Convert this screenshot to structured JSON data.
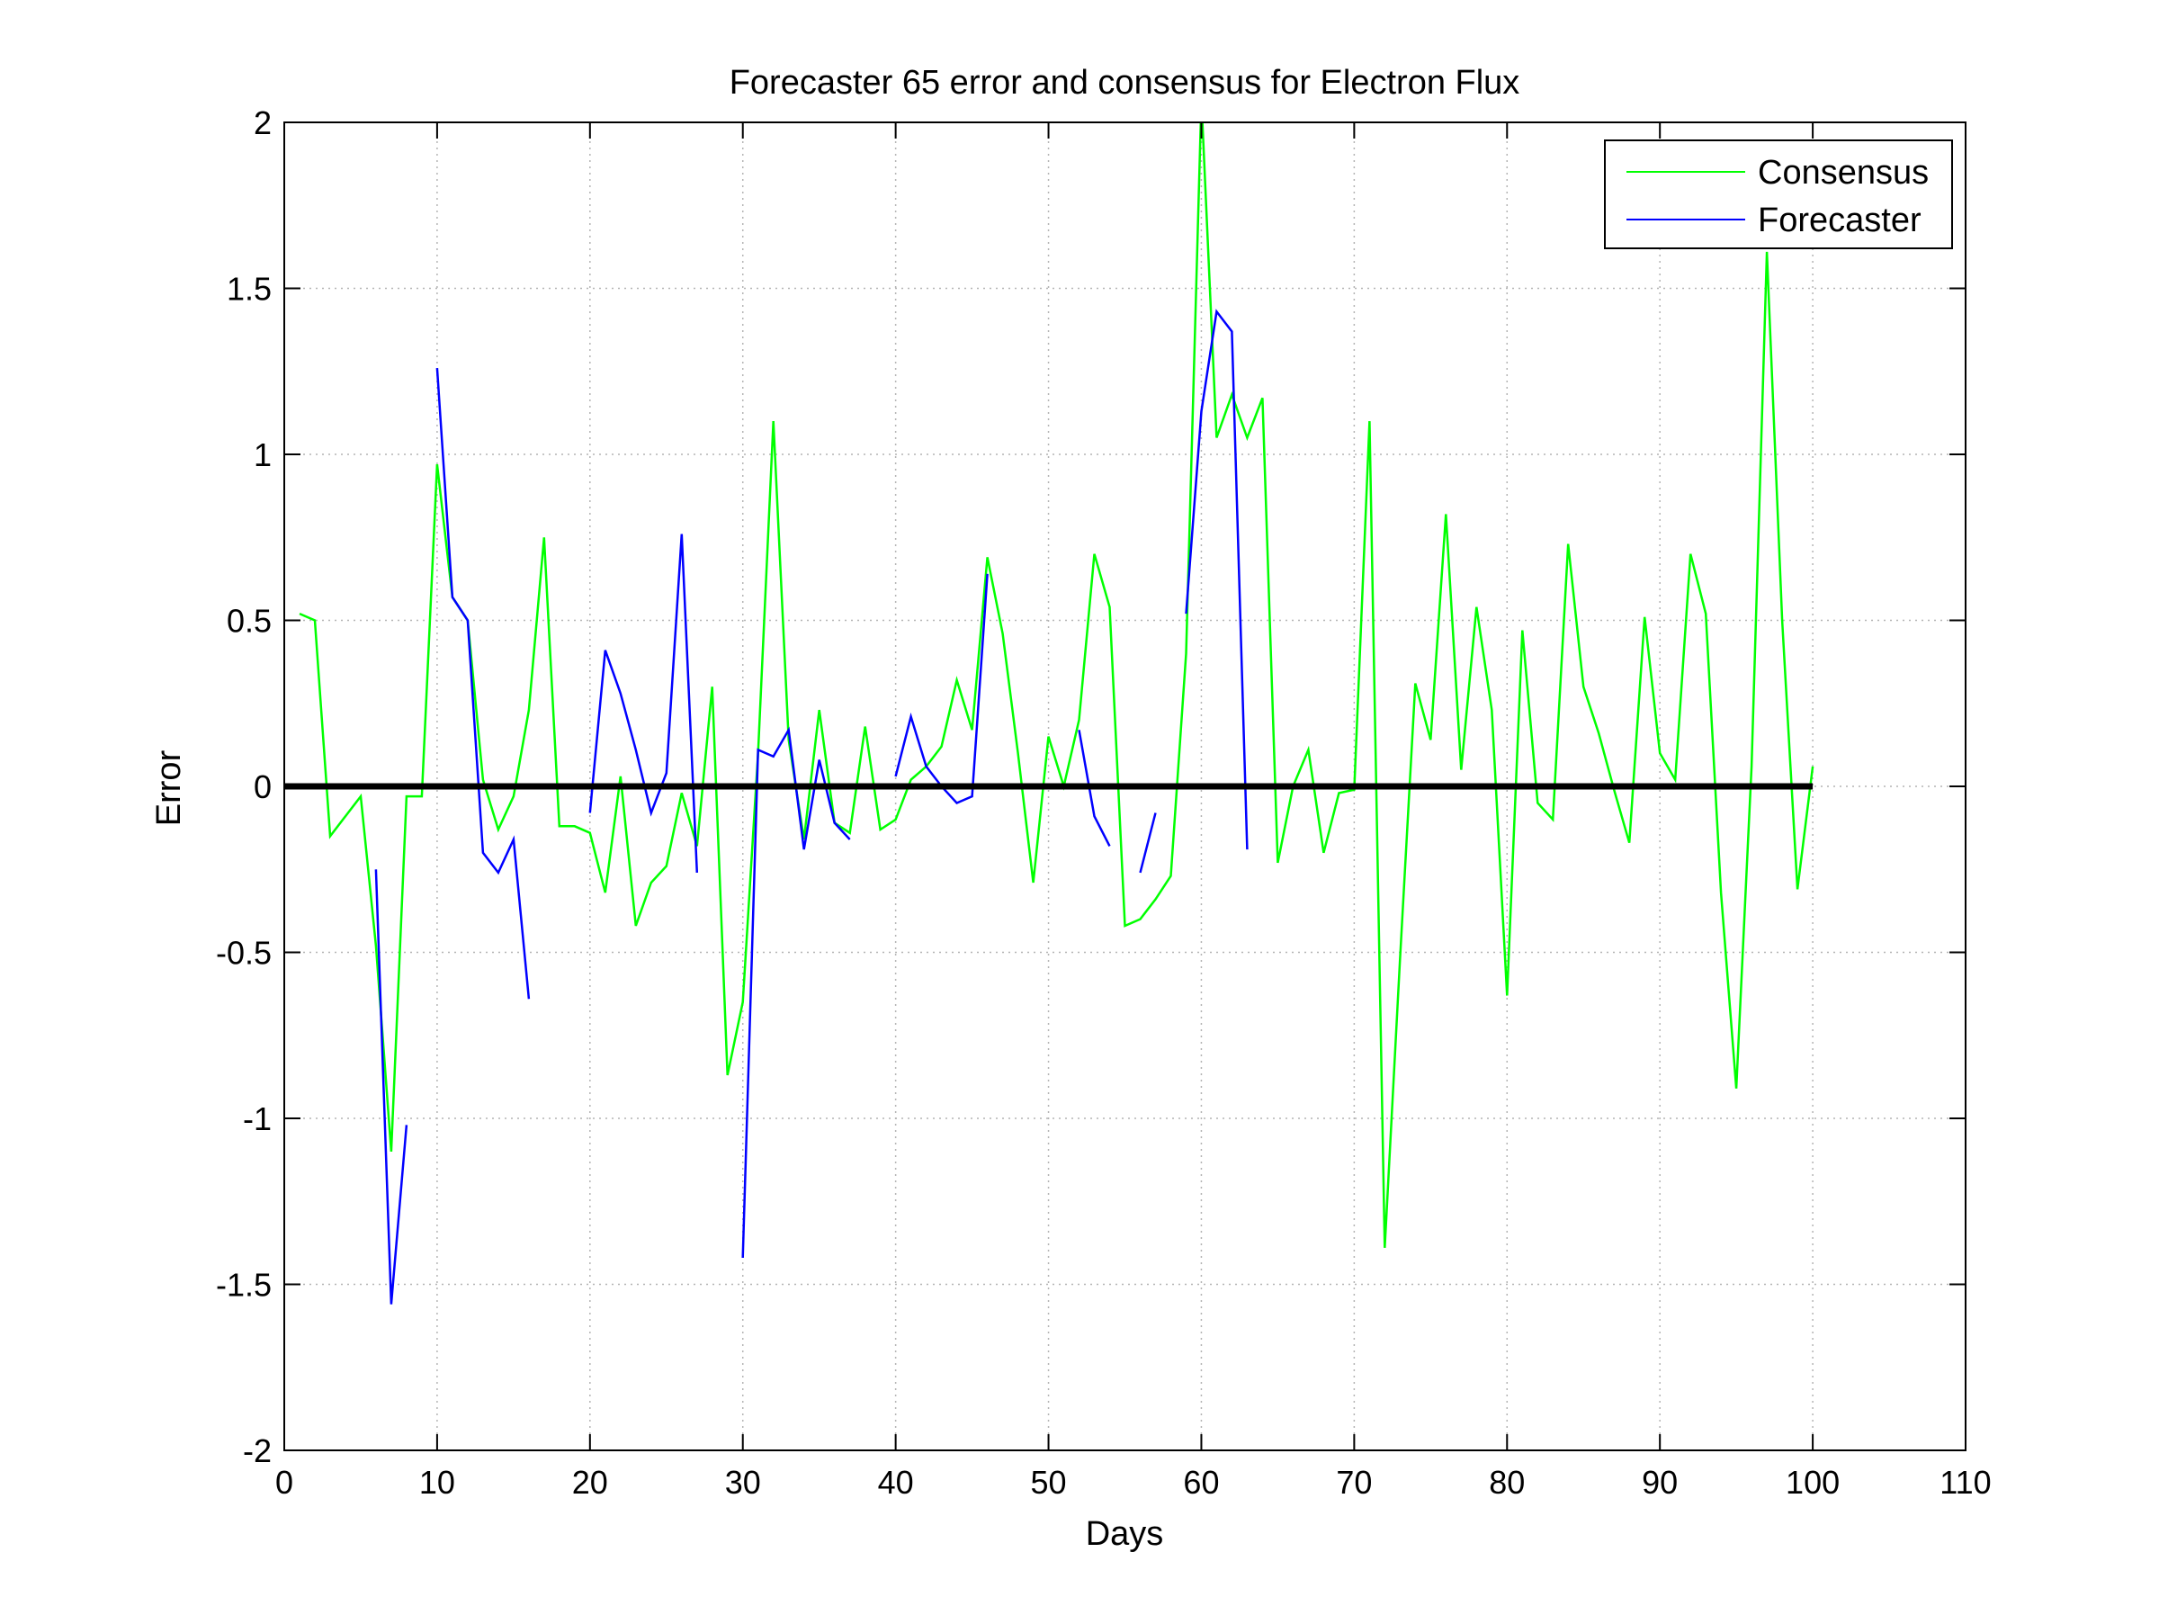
{
  "chart_data": {
    "type": "line",
    "title": "Forecaster 65 error and consensus for Electron Flux",
    "xlabel": "Days",
    "ylabel": "Error",
    "xlim": [
      0,
      110
    ],
    "ylim": [
      -2,
      2
    ],
    "xticks": [
      0,
      10,
      20,
      30,
      40,
      50,
      60,
      70,
      80,
      90,
      100,
      110
    ],
    "yticks": [
      -2,
      -1.5,
      -1,
      -0.5,
      0,
      0.5,
      1,
      1.5,
      2
    ],
    "grid": true,
    "legend_position": "top-right",
    "zero_line": {
      "y": 0,
      "color": "#000000"
    },
    "series": [
      {
        "name": "Consensus",
        "color": "#00ff00",
        "x": [
          1,
          2,
          3,
          4,
          5,
          6,
          7,
          8,
          9,
          10,
          11,
          12,
          13,
          14,
          15,
          16,
          17,
          18,
          19,
          20,
          21,
          22,
          23,
          24,
          25,
          26,
          27,
          28,
          29,
          30,
          31,
          32,
          33,
          34,
          35,
          36,
          37,
          38,
          39,
          40,
          41,
          42,
          43,
          44,
          45,
          46,
          47,
          48,
          49,
          50,
          51,
          52,
          53,
          54,
          55,
          56,
          57,
          58,
          59,
          60,
          61,
          62,
          63,
          64,
          65,
          66,
          67,
          68,
          69,
          70,
          71,
          72,
          73,
          74,
          75,
          76,
          77,
          78,
          79,
          80,
          81,
          82,
          83,
          84,
          85,
          86,
          87,
          88,
          89,
          90,
          91,
          92,
          93,
          94,
          95,
          96,
          97,
          98,
          99,
          100
        ],
        "y": [
          0.52,
          0.5,
          -0.15,
          -0.09,
          -0.03,
          -0.48,
          -1.1,
          -0.03,
          -0.03,
          0.97,
          0.57,
          0.5,
          0.02,
          -0.13,
          -0.03,
          0.23,
          0.75,
          -0.12,
          -0.12,
          -0.14,
          -0.32,
          0.03,
          -0.42,
          -0.29,
          -0.24,
          -0.02,
          -0.18,
          0.3,
          -0.87,
          -0.65,
          0.1,
          1.1,
          0.14,
          -0.16,
          0.23,
          -0.11,
          -0.14,
          0.18,
          -0.13,
          -0.1,
          0.02,
          0.06,
          0.12,
          0.32,
          0.17,
          0.69,
          0.46,
          0.1,
          -0.29,
          0.15,
          0.0,
          0.2,
          0.7,
          0.54,
          -0.42,
          -0.4,
          -0.34,
          -0.27,
          0.4,
          2.07,
          1.05,
          1.18,
          1.05,
          1.17,
          -0.23,
          0.0,
          0.11,
          -0.2,
          -0.02,
          -0.01,
          1.1,
          -1.39,
          -0.52,
          0.31,
          0.14,
          0.82,
          0.05,
          0.54,
          0.23,
          -0.63,
          0.47,
          -0.05,
          -0.1,
          0.73,
          0.3,
          0.16,
          -0.01,
          -0.17,
          0.51,
          0.1,
          0.02,
          0.7,
          0.52,
          -0.32,
          -0.91,
          0.06,
          1.61,
          0.5,
          -0.31,
          0.06
        ]
      },
      {
        "name": "Forecaster",
        "color": "#0000ff",
        "segments": [
          {
            "x": [
              6,
              7,
              8
            ],
            "y": [
              -0.25,
              -1.56,
              -1.02
            ]
          },
          {
            "x": [
              10,
              11,
              12,
              13,
              14,
              15,
              16
            ],
            "y": [
              1.26,
              0.57,
              0.5,
              -0.2,
              -0.26,
              -0.16,
              -0.64
            ]
          },
          {
            "x": [
              20,
              21,
              22,
              23,
              24,
              25,
              26,
              27
            ],
            "y": [
              -0.08,
              0.41,
              0.28,
              0.11,
              -0.08,
              0.04,
              0.76,
              -0.26
            ]
          },
          {
            "x": [
              30,
              31,
              32,
              33,
              34,
              35,
              36,
              37
            ],
            "y": [
              -1.42,
              0.11,
              0.09,
              0.17,
              -0.19,
              0.08,
              -0.11,
              -0.16
            ]
          },
          {
            "x": [
              40,
              41,
              42,
              43,
              44,
              45,
              46
            ],
            "y": [
              0.03,
              0.21,
              0.06,
              0.0,
              -0.05,
              -0.03,
              0.64
            ]
          },
          {
            "x": [
              52,
              53,
              54
            ],
            "y": [
              0.17,
              -0.09,
              -0.18
            ]
          },
          {
            "x": [
              56,
              57
            ],
            "y": [
              -0.26,
              -0.08
            ]
          },
          {
            "x": [
              59,
              60,
              61,
              62,
              63
            ],
            "y": [
              0.52,
              1.13,
              1.43,
              1.37,
              -0.19
            ]
          }
        ]
      }
    ]
  }
}
